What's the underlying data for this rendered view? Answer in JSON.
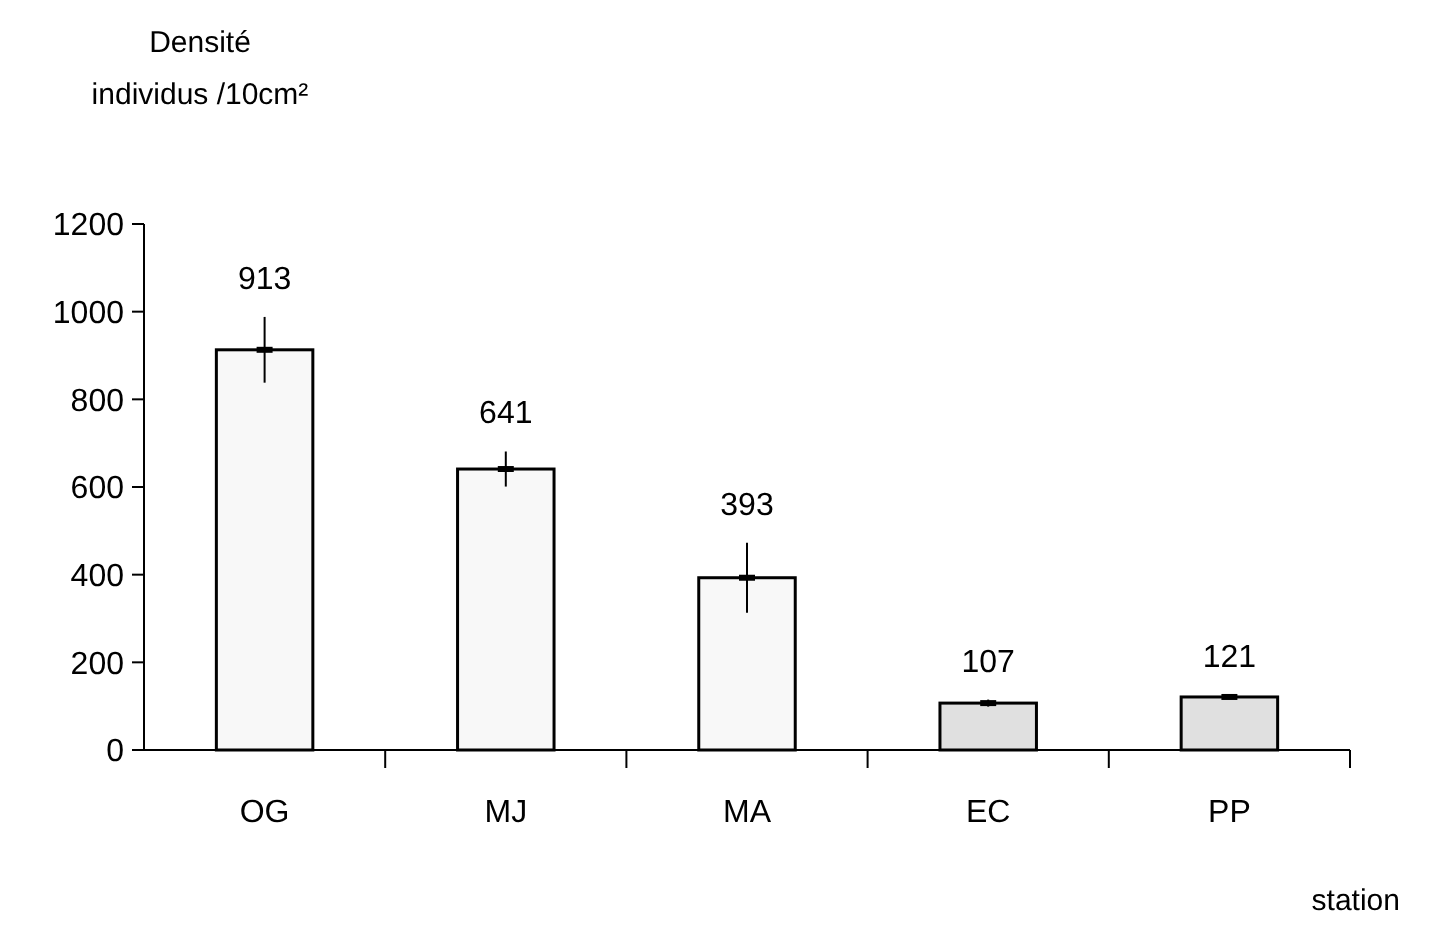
{
  "chart_data": {
    "type": "bar",
    "ylabel": "Densité\nindividus /10cm²",
    "xlabel": "station",
    "categories": [
      "OG",
      "MJ",
      "MA",
      "EC",
      "PP"
    ],
    "values": [
      913,
      641,
      393,
      107,
      121
    ],
    "errors": [
      75,
      40,
      80,
      8,
      5
    ],
    "colors": [
      "#f8f8f8",
      "#f8f8f8",
      "#f8f8f8",
      "#e0e0e0",
      "#e0e0e0"
    ],
    "ylim": [
      0,
      1200
    ],
    "yticks": [
      0,
      200,
      400,
      600,
      800,
      1000,
      1200
    ],
    "data_labels": true,
    "grid": false
  }
}
